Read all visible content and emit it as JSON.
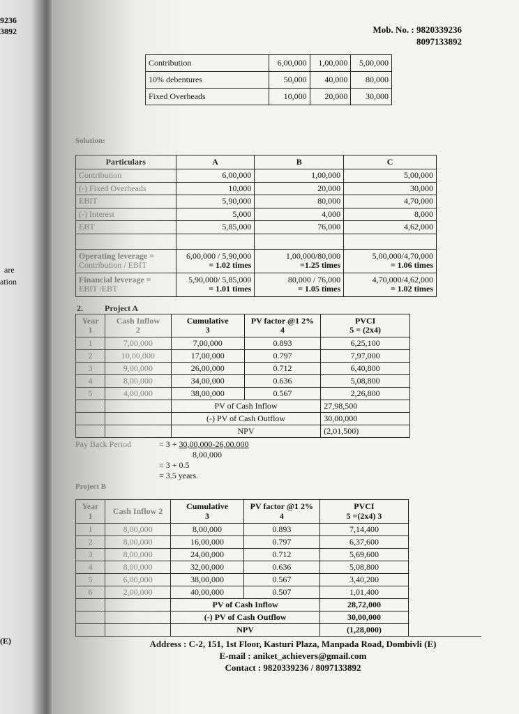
{
  "left_page": {
    "fragments": [
      "9236",
      "3892",
      "are",
      "ation",
      "(E)"
    ]
  },
  "header": {
    "mob_label": "Mob. No. :",
    "mob1": "9820339236",
    "mob2": "8097133892"
  },
  "given_table": {
    "rows": [
      [
        "Contribution",
        "6,00,000",
        "1,00,000",
        "5,00,000"
      ],
      [
        "10% debentures",
        "50,000",
        "40,000",
        "80,000"
      ],
      [
        "Fixed Overheads",
        "10,000",
        "20,000",
        "30,000"
      ]
    ]
  },
  "solution": {
    "heading": "Solution:",
    "headers": [
      "Particulars",
      "A",
      "B",
      "C"
    ],
    "rows": [
      [
        "Contribution",
        "6,00,000",
        "1,00,000",
        "5,00,000"
      ],
      [
        "(-) Fixed Overheads",
        "10,000",
        "20,000",
        "30,000"
      ],
      [
        "EBIT",
        "5,90,000",
        "80,000",
        "4,70,000"
      ],
      [
        "(-) Interest",
        "5,000",
        "4,000",
        "8,000"
      ],
      [
        "EBT",
        "5,85,000",
        "76,000",
        "4,62,000"
      ]
    ],
    "leverage": [
      {
        "label1": "Operating leverage =",
        "label2": "Contribution / EBIT",
        "a1": "6,00,000 / 5,90,000",
        "a2": "= 1.02 times",
        "b1": "1,00,000/80,000",
        "b2": "=1.25 times",
        "c1": "5,00,000/4,70,000",
        "c2": "= 1.06 times"
      },
      {
        "label1": "Financial leverage =",
        "label2": "EBIT /EBT",
        "a1": "5,90,000/ 5,85,000",
        "a2": "= 1.01 times",
        "b1": "80,000 / 76,000",
        "b2": "= 1.05 times",
        "c1": "4,70,000/4,62,000",
        "c2": "= 1.02 times"
      }
    ]
  },
  "project_a": {
    "number": "2.",
    "title": "Project A",
    "headers": [
      [
        "Year",
        "1"
      ],
      [
        "Cash Inflow",
        "2"
      ],
      [
        "Cumulative",
        "3"
      ],
      [
        "PV factor @1 2%",
        "4"
      ],
      [
        "PVCI",
        "5 = (2x4)"
      ]
    ],
    "rows": [
      [
        "1",
        "7,00,000",
        "7,00,000",
        "0.893",
        "6,25,100"
      ],
      [
        "2",
        "10,00,000",
        "17,00,000",
        "0.797",
        "7,97,000"
      ],
      [
        "3",
        "9,00,000",
        "26,00,000",
        "0.712",
        "6,40,800"
      ],
      [
        "4",
        "8,00,000",
        "34,00,000",
        "0.636",
        "5,08,800"
      ],
      [
        "5",
        "4,00,000",
        "38,00,000",
        "0.567",
        "2,26,800"
      ]
    ],
    "totals": [
      [
        "PV of Cash Inflow",
        "27,98,500"
      ],
      [
        "(-) PV of Cash Outflow",
        "30,00,000"
      ],
      [
        "NPV",
        "(2,01,500)"
      ]
    ]
  },
  "payback": {
    "label": "Pay Back Period",
    "line1_prefix": "= 3 + ",
    "line1_num": "30,00,000-26,00.000",
    "line2": "8,00,000",
    "line3": "= 3 + 0.5",
    "line4": "= 3.5 years."
  },
  "project_b": {
    "title": "Project B",
    "headers": [
      [
        "Year",
        "1"
      ],
      [
        "Cash Inflow 2",
        ""
      ],
      [
        "Cumulative",
        "3"
      ],
      [
        "PV factor @1 2%",
        "4"
      ],
      [
        "PVCI",
        "5 =(2x4)    3"
      ]
    ],
    "rows": [
      [
        "1",
        "8,00,000",
        "8,00,000",
        "0.893",
        "7,14,400"
      ],
      [
        "2",
        "8,00,000",
        "16,00,000",
        "0.797",
        "6,37,600"
      ],
      [
        "3",
        "8,00,000",
        "24,00,000",
        "0.712",
        "5,69,600"
      ],
      [
        "4",
        "8,00,000",
        "32,00,000",
        "0.636",
        "5,08,800"
      ],
      [
        "5",
        "6,00,000",
        "38,00,000",
        "0.567",
        "3,40,200"
      ],
      [
        "6",
        "2,00,000",
        "40,00,000",
        "0.507",
        "1,01,400"
      ]
    ],
    "totals": [
      [
        "PV of Cash Inflow",
        "28,72,000"
      ],
      [
        "(-) PV of Cash Outflow",
        "30,00,000"
      ],
      [
        "NPV",
        "(1,28,000)"
      ]
    ]
  },
  "footer": {
    "address": "Address : C-2, 151, 1st Floor, Kasturi Plaza, Manpada Road, Dombivli (E)",
    "email": "E-mail : aniket_achievers@gmail.com",
    "contact": "Contact : 9820339236 / 8097133892"
  }
}
